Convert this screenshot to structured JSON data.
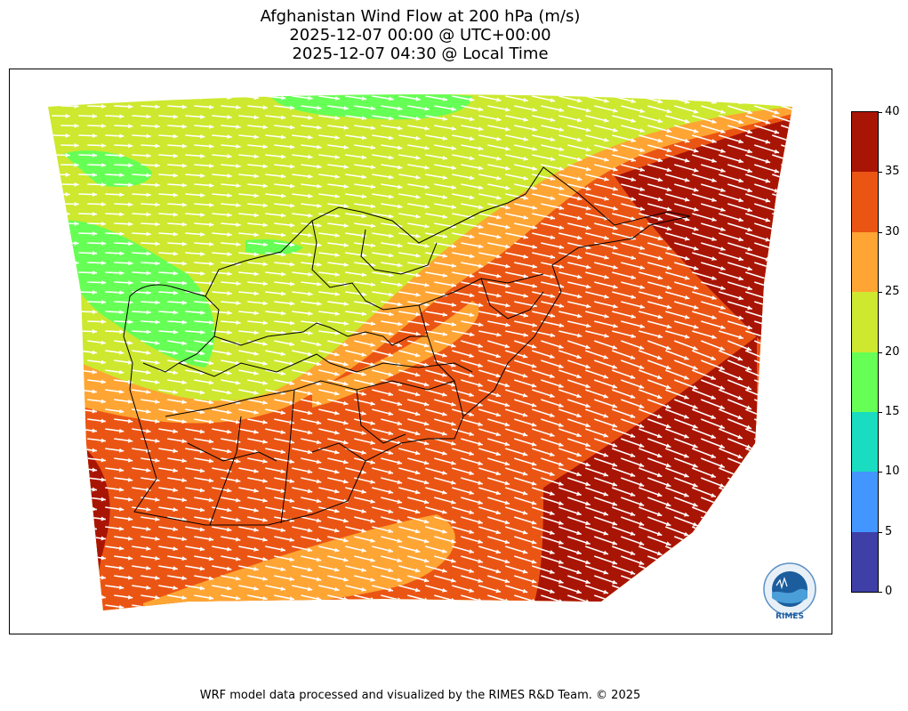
{
  "title": {
    "line1": "Afghanistan Wind Flow at 200 hPa (m/s)",
    "line2": "2025-12-07 00:00 @ UTC+00:00",
    "line3": "2025-12-07 04:30 @ Local Time"
  },
  "colorbar": {
    "ticks": [
      "0",
      "5",
      "10",
      "15",
      "20",
      "25",
      "30",
      "35",
      "40"
    ],
    "colors": [
      "#3f3fa8",
      "#4396ff",
      "#19dcc0",
      "#66ff55",
      "#cde82f",
      "#ffa534",
      "#eb5514",
      "#a91505"
    ]
  },
  "logo": {
    "text": "RIMES",
    "ring_text": "Regional Integrated Multi-Hazard Early Warning System"
  },
  "credit": "WRF model data processed and visualized by the RIMES R&D Team. © 2025",
  "map": {
    "variable": "wind speed",
    "units": "m/s",
    "level_hpa": 200,
    "vector_color": "#ffffff"
  }
}
